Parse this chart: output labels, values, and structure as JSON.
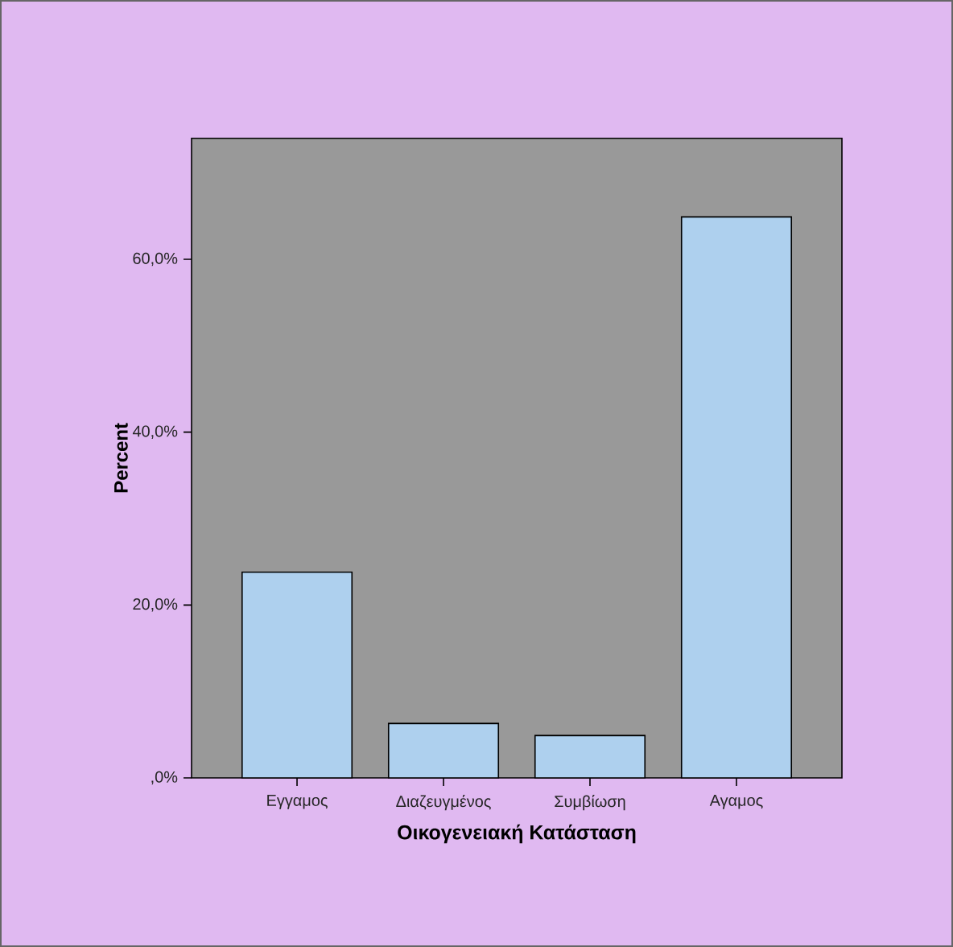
{
  "chart_data": {
    "type": "bar",
    "xlabel": "Οικογενειακή Κατάσταση",
    "ylabel": "Percent",
    "categories": [
      "Εγγαμος",
      "Διαζευγμένος",
      "Συμβίωση",
      "Αγαμος"
    ],
    "values": [
      23.8,
      6.3,
      4.9,
      64.9
    ],
    "color": "#aed0ee",
    "ylim": [
      0,
      74
    ],
    "yticks": [
      {
        "value": 0,
        "label": ",0%"
      },
      {
        "value": 20,
        "label": "20,0%"
      },
      {
        "value": 40,
        "label": "40,0%"
      },
      {
        "value": 60,
        "label": "60,0%"
      }
    ]
  }
}
